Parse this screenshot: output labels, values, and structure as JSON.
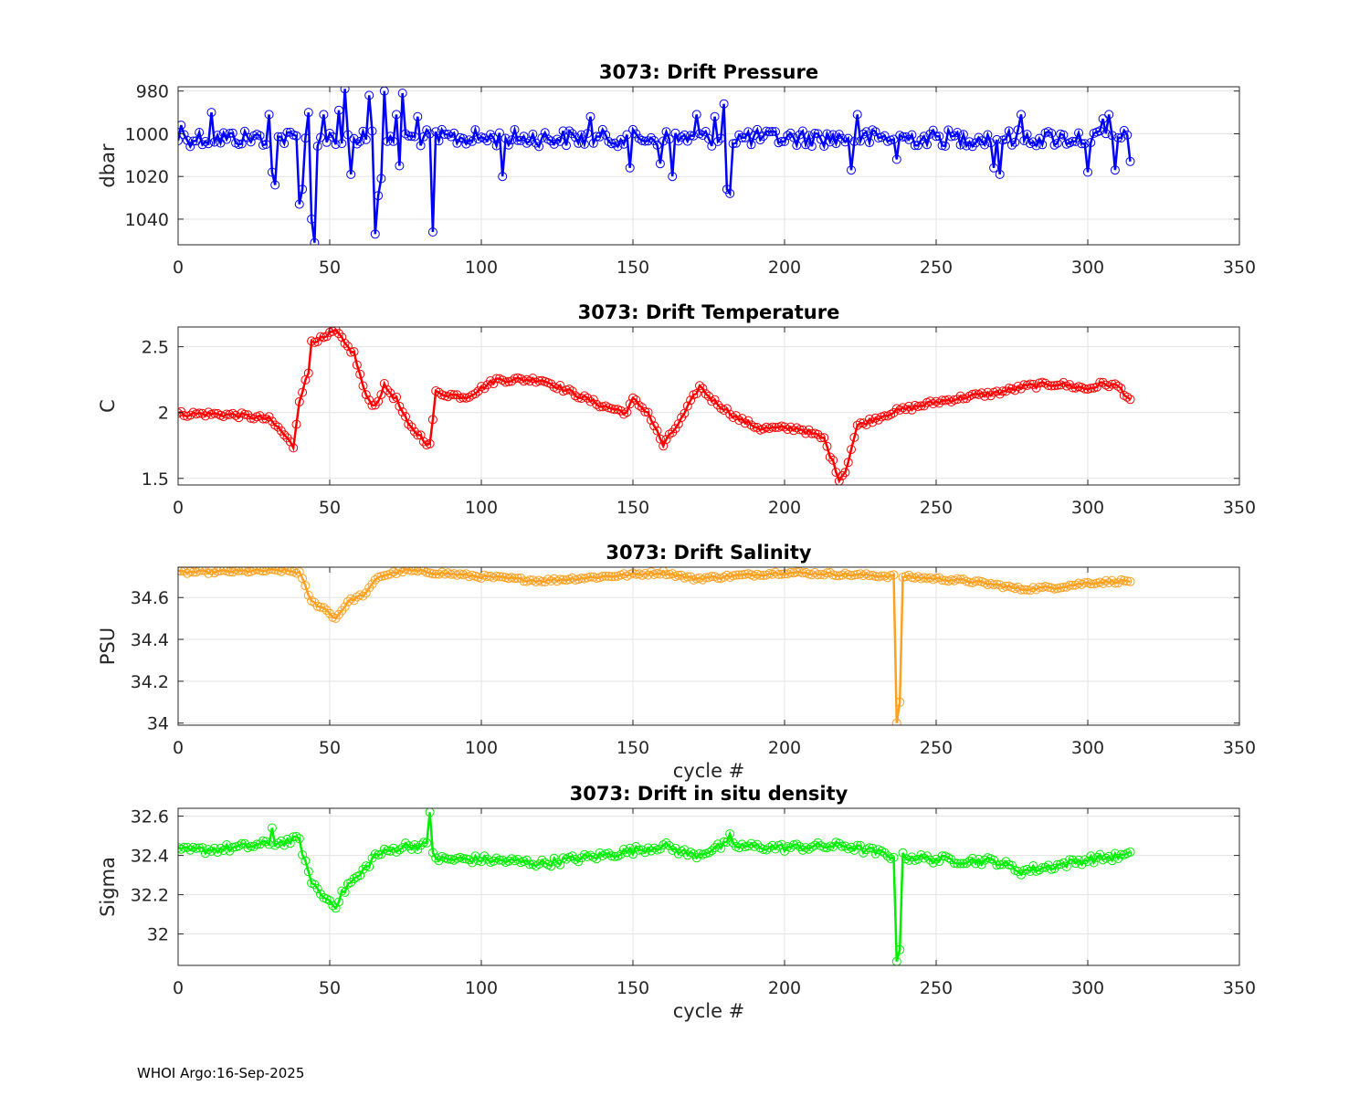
{
  "footer": "WHOI Argo:16-Sep-2025",
  "chart_data": [
    {
      "type": "line",
      "title": "3073: Drift Pressure",
      "xlabel": "",
      "ylabel": "dbar",
      "xlim": [
        0,
        350
      ],
      "ylim": [
        1052,
        978
      ],
      "y_reversed": true,
      "xticks": [
        0,
        50,
        100,
        150,
        200,
        250,
        300,
        350
      ],
      "yticks": [
        980,
        1000,
        1020,
        1040
      ],
      "grid": true,
      "color": "#0000ff",
      "marker": "circle",
      "base": 1002,
      "noise": 4,
      "keys": [
        [
          0,
          1002
        ],
        [
          314,
          1002
        ]
      ],
      "spikes": [
        [
          1,
          996
        ],
        [
          11,
          990
        ],
        [
          30,
          991
        ],
        [
          31,
          1018
        ],
        [
          32,
          1024
        ],
        [
          40,
          1033
        ],
        [
          41,
          1026
        ],
        [
          43,
          990
        ],
        [
          44,
          1040
        ],
        [
          45,
          1051
        ],
        [
          48,
          991
        ],
        [
          53,
          989
        ],
        [
          55,
          979
        ],
        [
          57,
          1019
        ],
        [
          63,
          982
        ],
        [
          65,
          1047
        ],
        [
          66,
          1029
        ],
        [
          67,
          1021
        ],
        [
          68,
          980
        ],
        [
          72,
          991
        ],
        [
          73,
          1015
        ],
        [
          74,
          981
        ],
        [
          79,
          992
        ],
        [
          84,
          1046
        ],
        [
          107,
          1020
        ],
        [
          136,
          992
        ],
        [
          149,
          1016
        ],
        [
          159,
          1014
        ],
        [
          163,
          1020
        ],
        [
          171,
          991
        ],
        [
          177,
          992
        ],
        [
          180,
          986
        ],
        [
          181,
          1026
        ],
        [
          182,
          1028
        ],
        [
          224,
          991
        ],
        [
          222,
          1017
        ],
        [
          237,
          1012
        ],
        [
          269,
          1016
        ],
        [
          271,
          1019
        ],
        [
          278,
          991
        ],
        [
          300,
          1018
        ],
        [
          305,
          993
        ],
        [
          307,
          991
        ],
        [
          309,
          1017
        ],
        [
          314,
          1013
        ]
      ]
    },
    {
      "type": "line",
      "title": "3073: Drift Temperature",
      "xlabel": "",
      "ylabel": "C",
      "xlim": [
        0,
        350
      ],
      "ylim": [
        1.45,
        2.65
      ],
      "xticks": [
        0,
        50,
        100,
        150,
        200,
        250,
        300,
        350
      ],
      "yticks": [
        1.5,
        2,
        2.5
      ],
      "ytick_labels": [
        "1.5",
        "2",
        "2.5"
      ],
      "grid": true,
      "color": "#ff0000",
      "marker": "circle",
      "noise": 0.02,
      "keys": [
        [
          0,
          1.99
        ],
        [
          10,
          1.99
        ],
        [
          20,
          1.98
        ],
        [
          30,
          1.95
        ],
        [
          34,
          1.86
        ],
        [
          38,
          1.74
        ],
        [
          40,
          2.1
        ],
        [
          43,
          2.3
        ],
        [
          44,
          2.55
        ],
        [
          48,
          2.56
        ],
        [
          52,
          2.62
        ],
        [
          55,
          2.52
        ],
        [
          58,
          2.45
        ],
        [
          62,
          2.12
        ],
        [
          65,
          2.05
        ],
        [
          68,
          2.2
        ],
        [
          72,
          2.1
        ],
        [
          76,
          1.9
        ],
        [
          80,
          1.82
        ],
        [
          83,
          1.75
        ],
        [
          85,
          2.15
        ],
        [
          95,
          2.12
        ],
        [
          105,
          2.25
        ],
        [
          115,
          2.25
        ],
        [
          120,
          2.25
        ],
        [
          130,
          2.15
        ],
        [
          140,
          2.05
        ],
        [
          148,
          2.0
        ],
        [
          150,
          2.1
        ],
        [
          155,
          2.0
        ],
        [
          160,
          1.75
        ],
        [
          163,
          1.85
        ],
        [
          166,
          1.95
        ],
        [
          172,
          2.2
        ],
        [
          176,
          2.1
        ],
        [
          185,
          1.95
        ],
        [
          192,
          1.88
        ],
        [
          205,
          1.88
        ],
        [
          213,
          1.8
        ],
        [
          218,
          1.5
        ],
        [
          220,
          1.55
        ],
        [
          224,
          1.9
        ],
        [
          235,
          2.0
        ],
        [
          250,
          2.08
        ],
        [
          260,
          2.12
        ],
        [
          270,
          2.15
        ],
        [
          280,
          2.2
        ],
        [
          290,
          2.22
        ],
        [
          300,
          2.18
        ],
        [
          305,
          2.22
        ],
        [
          310,
          2.2
        ],
        [
          314,
          2.1
        ]
      ]
    },
    {
      "type": "line",
      "title": "3073: Drift Salinity",
      "xlabel": "cycle #",
      "ylabel": "PSU",
      "xlim": [
        0,
        350
      ],
      "ylim": [
        33.99,
        34.745
      ],
      "xticks": [
        0,
        50,
        100,
        150,
        200,
        250,
        300,
        350
      ],
      "yticks": [
        34,
        34.2,
        34.4,
        34.6
      ],
      "ytick_labels": [
        "34",
        "34.2",
        "34.4",
        "34.6"
      ],
      "grid": true,
      "color": "#ffa020",
      "marker": "circle",
      "noise": 0.008,
      "keys": [
        [
          0,
          34.72
        ],
        [
          35,
          34.73
        ],
        [
          40,
          34.72
        ],
        [
          44,
          34.58
        ],
        [
          48,
          34.55
        ],
        [
          52,
          34.5
        ],
        [
          56,
          34.58
        ],
        [
          62,
          34.62
        ],
        [
          66,
          34.7
        ],
        [
          75,
          34.73
        ],
        [
          84,
          34.72
        ],
        [
          100,
          34.7
        ],
        [
          120,
          34.68
        ],
        [
          140,
          34.7
        ],
        [
          160,
          34.72
        ],
        [
          170,
          34.69
        ],
        [
          180,
          34.7
        ],
        [
          200,
          34.72
        ],
        [
          220,
          34.71
        ],
        [
          240,
          34.7
        ],
        [
          260,
          34.68
        ],
        [
          270,
          34.66
        ],
        [
          278,
          34.64
        ],
        [
          290,
          34.65
        ],
        [
          300,
          34.67
        ],
        [
          314,
          34.68
        ]
      ],
      "spikes": [
        [
          237,
          34.0
        ],
        [
          238,
          34.1
        ]
      ]
    },
    {
      "type": "line",
      "title": "3073: Drift in situ density",
      "xlabel": "cycle #",
      "ylabel": "Sigma",
      "xlim": [
        0,
        350
      ],
      "ylim": [
        31.84,
        32.64
      ],
      "xticks": [
        0,
        50,
        100,
        150,
        200,
        250,
        300,
        350
      ],
      "yticks": [
        32,
        32.2,
        32.4,
        32.6
      ],
      "ytick_labels": [
        "32",
        "32.2",
        "32.4",
        "32.6"
      ],
      "grid": true,
      "color": "#00ee00",
      "marker": "circle",
      "noise": 0.02,
      "keys": [
        [
          0,
          32.42
        ],
        [
          20,
          32.44
        ],
        [
          30,
          32.46
        ],
        [
          40,
          32.48
        ],
        [
          43,
          32.3
        ],
        [
          47,
          32.2
        ],
        [
          52,
          32.15
        ],
        [
          56,
          32.25
        ],
        [
          60,
          32.3
        ],
        [
          65,
          32.4
        ],
        [
          75,
          32.45
        ],
        [
          82,
          32.45
        ],
        [
          86,
          32.38
        ],
        [
          100,
          32.38
        ],
        [
          120,
          32.36
        ],
        [
          140,
          32.4
        ],
        [
          160,
          32.45
        ],
        [
          170,
          32.4
        ],
        [
          180,
          32.45
        ],
        [
          200,
          32.44
        ],
        [
          220,
          32.45
        ],
        [
          235,
          32.4
        ],
        [
          250,
          32.38
        ],
        [
          270,
          32.37
        ],
        [
          278,
          32.32
        ],
        [
          290,
          32.35
        ],
        [
          300,
          32.38
        ],
        [
          314,
          32.4
        ]
      ],
      "spikes": [
        [
          31,
          32.54
        ],
        [
          83,
          32.62
        ],
        [
          182,
          32.51
        ],
        [
          237,
          31.86
        ],
        [
          238,
          31.92
        ]
      ]
    }
  ]
}
